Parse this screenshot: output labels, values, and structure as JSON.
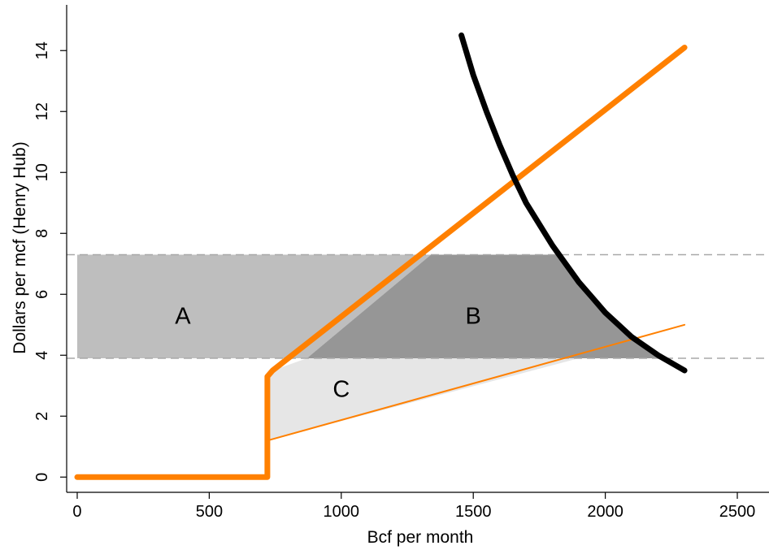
{
  "chart_data": {
    "type": "line",
    "xlabel": "Bcf per month",
    "ylabel": "Dollars per mcf (Henry Hub)",
    "xlim": [
      -40,
      2620
    ],
    "ylim": [
      -0.5,
      15.5
    ],
    "xticks": [
      0,
      500,
      1000,
      1500,
      2000,
      2500
    ],
    "yticks": [
      0,
      2,
      4,
      6,
      8,
      10,
      12,
      14
    ],
    "grid": false,
    "legend": "none",
    "reference_lines": [
      {
        "y": 7.3,
        "style": "dashed",
        "color": "#a8a8a8"
      },
      {
        "y": 3.9,
        "style": "dashed",
        "color": "#a8a8a8"
      }
    ],
    "regions": [
      {
        "label": "A",
        "color": "#bebebe",
        "points": [
          [
            0,
            3.9
          ],
          [
            0,
            7.3
          ],
          [
            1340,
            7.3
          ],
          [
            870,
            3.9
          ]
        ],
        "label_at": [
          400,
          5.3
        ]
      },
      {
        "label": "B",
        "color": "#969696",
        "points": [
          [
            870,
            3.9
          ],
          [
            1340,
            7.3
          ],
          [
            1820,
            7.3
          ],
          [
            1900,
            6.3
          ],
          [
            2000,
            5.4
          ],
          [
            2100,
            4.7
          ],
          [
            2200,
            4.1
          ],
          [
            2225,
            3.9
          ]
        ],
        "label_at": [
          1500,
          5.3
        ]
      },
      {
        "label": "C",
        "color": "#e6e6e6",
        "points": [
          [
            720,
            1.2
          ],
          [
            720,
            3.3
          ],
          [
            740,
            3.5
          ],
          [
            870,
            3.9
          ],
          [
            1900,
            3.9
          ]
        ],
        "label_at": [
          1000,
          2.9
        ]
      }
    ],
    "series": [
      {
        "color": "#ff8000",
        "width": 7,
        "x": [
          0,
          720,
          720,
          740,
          2300
        ],
        "y": [
          0,
          0,
          3.3,
          3.5,
          14.1
        ]
      },
      {
        "color": "#ff8000",
        "width": 2,
        "x": [
          720,
          2300
        ],
        "y": [
          1.2,
          5.0
        ]
      },
      {
        "color": "#000000",
        "width": 7,
        "x": [
          1455,
          1500,
          1550,
          1600,
          1650,
          1700,
          1750,
          1800,
          1850,
          1900,
          1950,
          2000,
          2050,
          2100,
          2150,
          2200,
          2250,
          2300
        ],
        "y": [
          14.5,
          13.2,
          12.0,
          10.9,
          9.9,
          9.0,
          8.3,
          7.6,
          7.0,
          6.4,
          5.9,
          5.4,
          5.0,
          4.6,
          4.3,
          4.0,
          3.75,
          3.5
        ]
      }
    ]
  }
}
